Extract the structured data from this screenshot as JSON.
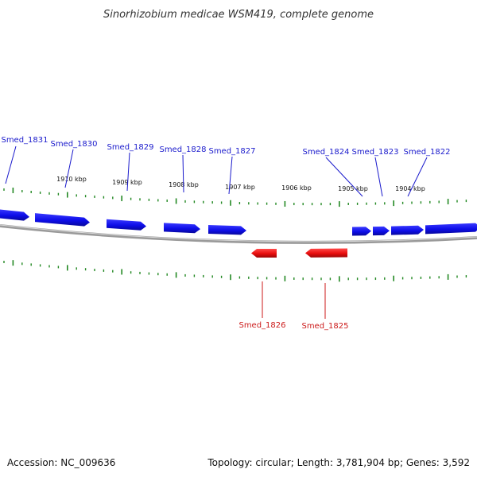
{
  "title": "Sinorhizobium medicae WSM419, complete genome",
  "footer": {
    "accession": "Accession: NC_009636",
    "summary": "Topology: circular; Length: 3,781,904 bp; Genes: 3,592"
  },
  "scale_labels": [
    "1910 kbp",
    "1909 kbp",
    "1908 kbp",
    "1907 kbp",
    "1906 kbp",
    "1905 kbp",
    "1904 kbp"
  ],
  "genes": [
    {
      "name": "Smed_1831",
      "strand": "+"
    },
    {
      "name": "Smed_1830",
      "strand": "+"
    },
    {
      "name": "Smed_1829",
      "strand": "+"
    },
    {
      "name": "Smed_1828",
      "strand": "+"
    },
    {
      "name": "Smed_1827",
      "strand": "+"
    },
    {
      "name": "Smed_1824",
      "strand": "+"
    },
    {
      "name": "Smed_1823",
      "strand": "+"
    },
    {
      "name": "Smed_1822",
      "strand": "+"
    },
    {
      "name": "Smed_1826",
      "strand": "-"
    },
    {
      "name": "Smed_1825",
      "strand": "-"
    }
  ],
  "colors": {
    "forward_strand": "#1010ee",
    "reverse_strand": "#ee1010",
    "forward_label": "#1a1acc",
    "reverse_label": "#cc1a1a",
    "backbone": "#8a8a8a",
    "ticks": "#228822"
  }
}
